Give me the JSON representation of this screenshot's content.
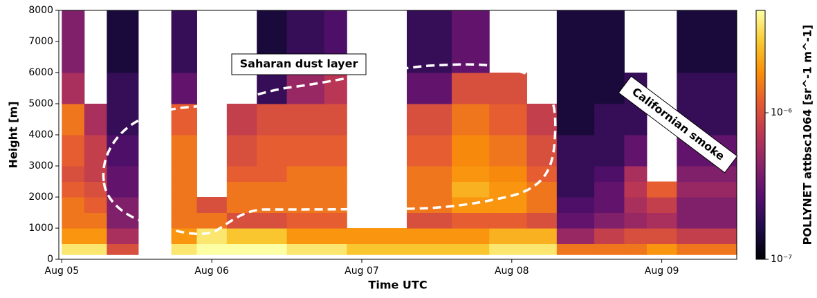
{
  "chart_data": {
    "type": "heatmap",
    "x_label": "Time UTC",
    "y_label": "Height [m]",
    "colorbar_label": "POLLYNET attbsc1064 [sr^-1 m^-1]",
    "annotations": [
      "Saharan dust layer",
      "Californian smoke"
    ],
    "xlim": [
      -0.02,
      4.5
    ],
    "xticks": [
      {
        "value": 0,
        "label": "Aug 05"
      },
      {
        "value": 1,
        "label": "Aug 06"
      },
      {
        "value": 2,
        "label": "Aug 07"
      },
      {
        "value": 3,
        "label": "Aug 08"
      },
      {
        "value": 4,
        "label": "Aug 09"
      }
    ],
    "ylim": [
      0,
      8000
    ],
    "yticks": [
      0,
      1000,
      2000,
      3000,
      4000,
      5000,
      6000,
      7000,
      8000
    ],
    "zlim": [
      1e-07,
      5e-06
    ],
    "zscale": "log",
    "zticks": [
      {
        "value": 1e-07,
        "label": "10⁻⁷"
      },
      {
        "value": 1e-06,
        "label": "10⁻⁶"
      }
    ],
    "colormap": [
      "#000004",
      "#1f0c48",
      "#550f6d",
      "#88226a",
      "#ba3655",
      "#e35933",
      "#f98e09",
      "#f9c932",
      "#fcffa4"
    ],
    "x_edges": [
      0,
      0.15,
      0.3,
      0.51,
      0.73,
      0.9,
      1.1,
      1.3,
      1.5,
      1.75,
      1.9,
      2.3,
      2.6,
      2.85,
      3.1,
      3.3,
      3.55,
      3.75,
      3.9,
      4.1,
      4.5
    ],
    "y_edges": [
      150,
      500,
      1000,
      1500,
      2000,
      2500,
      3000,
      4000,
      5000,
      6000,
      8000
    ],
    "z": [
      [
        4e-06,
        4e-06,
        1e-06,
        null,
        4e-06,
        5e-06,
        5e-06,
        5e-06,
        4e-06,
        4e-06,
        3e-06,
        3e-06,
        3e-06,
        4e-06,
        4e-06,
        1.5e-06,
        1.5e-06,
        1.5e-06,
        2e-06,
        1.5e-06
      ],
      [
        2e-06,
        2e-06,
        6e-07,
        null,
        2e-06,
        4e-06,
        3e-06,
        3e-06,
        2e-06,
        2e-06,
        2e-06,
        2e-06,
        2e-06,
        2.5e-06,
        2.5e-06,
        5e-07,
        8e-07,
        1e-06,
        1e-06,
        8e-07
      ],
      [
        1.5e-06,
        1.5e-06,
        4e-07,
        null,
        1.5e-06,
        1.5e-06,
        1e-06,
        1e-06,
        1.2e-06,
        1.2e-06,
        null,
        1e-06,
        1.2e-06,
        1.2e-06,
        1e-06,
        3e-07,
        4e-07,
        5e-07,
        6e-07,
        4e-07
      ],
      [
        1.5e-06,
        1.2e-06,
        4e-07,
        null,
        1.5e-06,
        1e-06,
        1.5e-06,
        1.5e-06,
        1.5e-06,
        1.5e-06,
        null,
        1.5e-06,
        2e-06,
        2e-06,
        1.5e-06,
        2.5e-07,
        3e-07,
        6e-07,
        8e-07,
        4e-07
      ],
      [
        1.2e-06,
        1e-06,
        3e-07,
        null,
        1.5e-06,
        null,
        1.5e-06,
        1.5e-06,
        1.5e-06,
        1.5e-06,
        null,
        1.5e-06,
        2.5e-06,
        2e-06,
        1.5e-06,
        2e-07,
        3e-07,
        7e-07,
        1.2e-06,
        5e-07
      ],
      [
        1e-06,
        8e-07,
        3e-07,
        null,
        1.5e-06,
        null,
        1.2e-06,
        1.2e-06,
        1.5e-06,
        1.5e-06,
        null,
        1.5e-06,
        2e-06,
        1.8e-06,
        1.2e-06,
        2e-07,
        2.5e-07,
        6e-07,
        null,
        4e-07
      ],
      [
        1.2e-06,
        8e-07,
        2.5e-07,
        null,
        1.5e-06,
        null,
        1e-06,
        1.2e-06,
        1.2e-06,
        1.2e-06,
        null,
        1.2e-06,
        1.8e-06,
        1.5e-06,
        1e-06,
        2e-07,
        2e-07,
        3e-07,
        null,
        3e-07
      ],
      [
        1.5e-06,
        6e-07,
        2e-07,
        null,
        1.2e-06,
        null,
        8e-07,
        1e-06,
        1e-06,
        1e-06,
        null,
        1e-06,
        1.5e-06,
        1.2e-06,
        8e-07,
        1.5e-07,
        2e-07,
        2e-07,
        null,
        2e-07
      ],
      [
        6e-07,
        null,
        2e-07,
        null,
        3e-07,
        null,
        null,
        2e-07,
        5e-07,
        7e-07,
        null,
        3e-07,
        1e-06,
        1e-06,
        null,
        1.5e-07,
        1.5e-07,
        2e-07,
        null,
        2e-07
      ],
      [
        4e-07,
        null,
        1.5e-07,
        null,
        2e-07,
        null,
        null,
        1.5e-07,
        2e-07,
        2.5e-07,
        null,
        2e-07,
        3e-07,
        null,
        null,
        1.5e-07,
        1.5e-07,
        null,
        null,
        1.5e-07
      ]
    ]
  }
}
